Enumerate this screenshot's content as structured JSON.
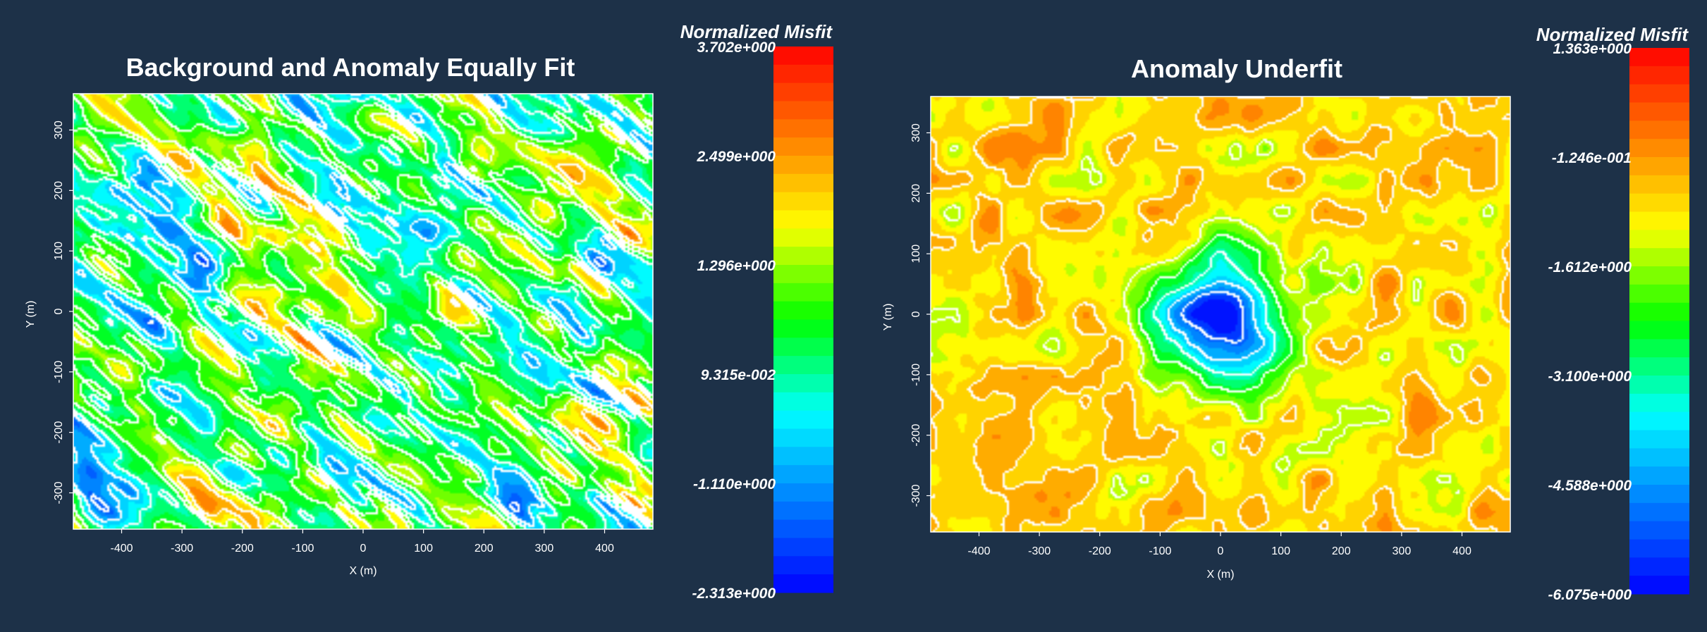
{
  "chart_data": [
    {
      "type": "heatmap",
      "title": "Background and Anomaly Equally Fit",
      "xlabel": "X (m)",
      "ylabel": "Y (m)",
      "xlim": [
        -480,
        480
      ],
      "ylim": [
        -360,
        360
      ],
      "x_ticks": [
        -400,
        -300,
        -200,
        -100,
        0,
        100,
        200,
        300,
        400
      ],
      "y_ticks": [
        -300,
        -200,
        -100,
        0,
        100,
        200,
        300
      ],
      "grid": false,
      "colorbar": {
        "title": "Normalized Misfit",
        "min": -2.313,
        "max": 3.702,
        "tick_labels": [
          "3.702e+000",
          "2.499e+000",
          "1.296e+000",
          "9.315e-002",
          "-1.110e+000",
          "-2.313e+000"
        ]
      },
      "field": {
        "pattern": "diagonal-banded",
        "mean": 0.55,
        "amplitude": 1.7,
        "anomaly_center": null
      },
      "contours": "white"
    },
    {
      "type": "heatmap",
      "title": "Anomaly Underfit",
      "xlabel": "X (m)",
      "ylabel": "Y (m)",
      "xlim": [
        -480,
        480
      ],
      "ylim": [
        -360,
        360
      ],
      "x_ticks": [
        -400,
        -300,
        -200,
        -100,
        0,
        100,
        200,
        300,
        400
      ],
      "y_ticks": [
        -300,
        -200,
        -100,
        0,
        100,
        200,
        300
      ],
      "grid": false,
      "colorbar": {
        "title": "Normalized Misfit",
        "min": -6.075,
        "max": 1.363,
        "tick_labels": [
          "1.363e+000",
          "-1.246e-001",
          "-1.612e+000",
          "-3.100e+000",
          "-4.588e+000",
          "-6.075e+000"
        ]
      },
      "field": {
        "pattern": "central-low",
        "mean": -0.7,
        "amplitude": 0.7,
        "anomaly_center": [
          0,
          0
        ],
        "anomaly_min": -6.0
      },
      "contours": "white"
    }
  ]
}
